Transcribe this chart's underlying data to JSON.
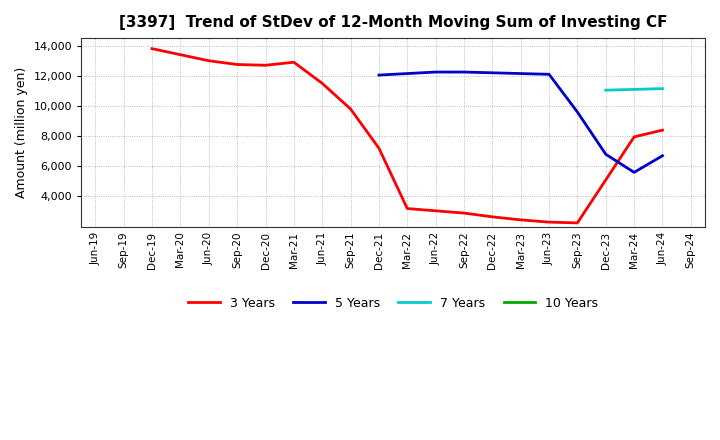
{
  "title": "[3397]  Trend of StDev of 12-Month Moving Sum of Investing CF",
  "ylabel": "Amount (million yen)",
  "background_color": "#ffffff",
  "plot_bg_color": "#ffffff",
  "grid_color": "#aaaaaa",
  "ylim": [
    2000,
    14500
  ],
  "yticks": [
    4000,
    6000,
    8000,
    10000,
    12000,
    14000
  ],
  "xtick_labels": [
    "Jun-19",
    "Sep-19",
    "Dec-19",
    "Mar-20",
    "Jun-20",
    "Sep-20",
    "Dec-20",
    "Mar-21",
    "Jun-21",
    "Sep-21",
    "Dec-21",
    "Mar-22",
    "Jun-22",
    "Sep-22",
    "Dec-22",
    "Mar-23",
    "Jun-23",
    "Sep-23",
    "Dec-23",
    "Mar-24",
    "Jun-24",
    "Sep-24"
  ],
  "series": {
    "3yr": {
      "color": "#ff0000",
      "label": "3 Years",
      "x": [
        "Dec-19",
        "Mar-20",
        "Jun-20",
        "Sep-20",
        "Dec-20",
        "Mar-21",
        "Jun-21",
        "Sep-21",
        "Dec-21",
        "Mar-22",
        "Jun-22",
        "Sep-22",
        "Dec-22",
        "Mar-23",
        "Jun-23",
        "Sep-23",
        "Dec-23",
        "Mar-24",
        "Jun-24"
      ],
      "y": [
        13800,
        13400,
        13000,
        12750,
        12700,
        12900,
        11500,
        9800,
        7200,
        3200,
        3050,
        2900,
        2650,
        2450,
        2300,
        2250,
        5100,
        7950,
        8400
      ]
    },
    "5yr": {
      "color": "#0000cc",
      "label": "5 Years",
      "x": [
        "Dec-21",
        "Mar-22",
        "Jun-22",
        "Sep-22",
        "Dec-22",
        "Mar-23",
        "Jun-23",
        "Sep-23",
        "Dec-23",
        "Mar-24",
        "Jun-24"
      ],
      "y": [
        12050,
        12150,
        12250,
        12250,
        12200,
        12150,
        12100,
        9600,
        6800,
        5600,
        6700
      ]
    },
    "7yr": {
      "color": "#00cccc",
      "label": "7 Years",
      "x": [
        "Dec-23",
        "Mar-24",
        "Jun-24"
      ],
      "y": [
        11050,
        11100,
        11150
      ]
    },
    "10yr": {
      "color": "#00aa00",
      "label": "10 Years",
      "x": [],
      "y": []
    }
  },
  "legend": {
    "labels": [
      "3 Years",
      "5 Years",
      "7 Years",
      "10 Years"
    ],
    "colors": [
      "#ff0000",
      "#0000cc",
      "#00cccc",
      "#00aa00"
    ]
  }
}
